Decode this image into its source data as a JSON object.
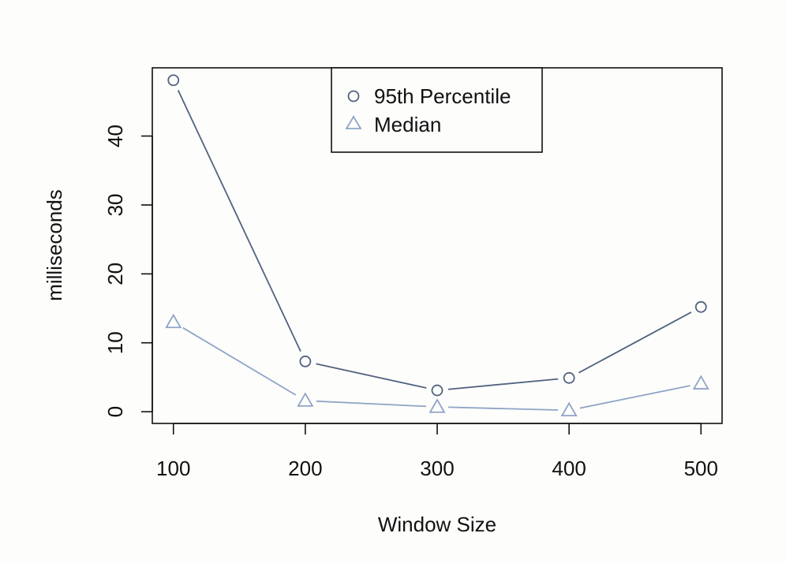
{
  "chart_data": {
    "type": "line",
    "xlabel": "Window Size",
    "ylabel": "milliseconds",
    "x": [
      100,
      200,
      300,
      400,
      500
    ],
    "xticks": [
      "100",
      "200",
      "300",
      "400",
      "500"
    ],
    "yticks": [
      "0",
      "10",
      "20",
      "30",
      "40"
    ],
    "xlim": [
      84,
      516
    ],
    "ylim": [
      -1.7,
      49.9
    ],
    "grid": false,
    "legend_position": "top-center",
    "series": [
      {
        "name": "95th Percentile",
        "marker": "circle",
        "color": "#52627f",
        "values": [
          48.1,
          7.3,
          3.1,
          4.9,
          15.2
        ]
      },
      {
        "name": "Median",
        "marker": "triangle",
        "color": "#8ea4c7",
        "values": [
          13.0,
          1.6,
          0.7,
          0.2,
          4.1
        ]
      }
    ]
  }
}
